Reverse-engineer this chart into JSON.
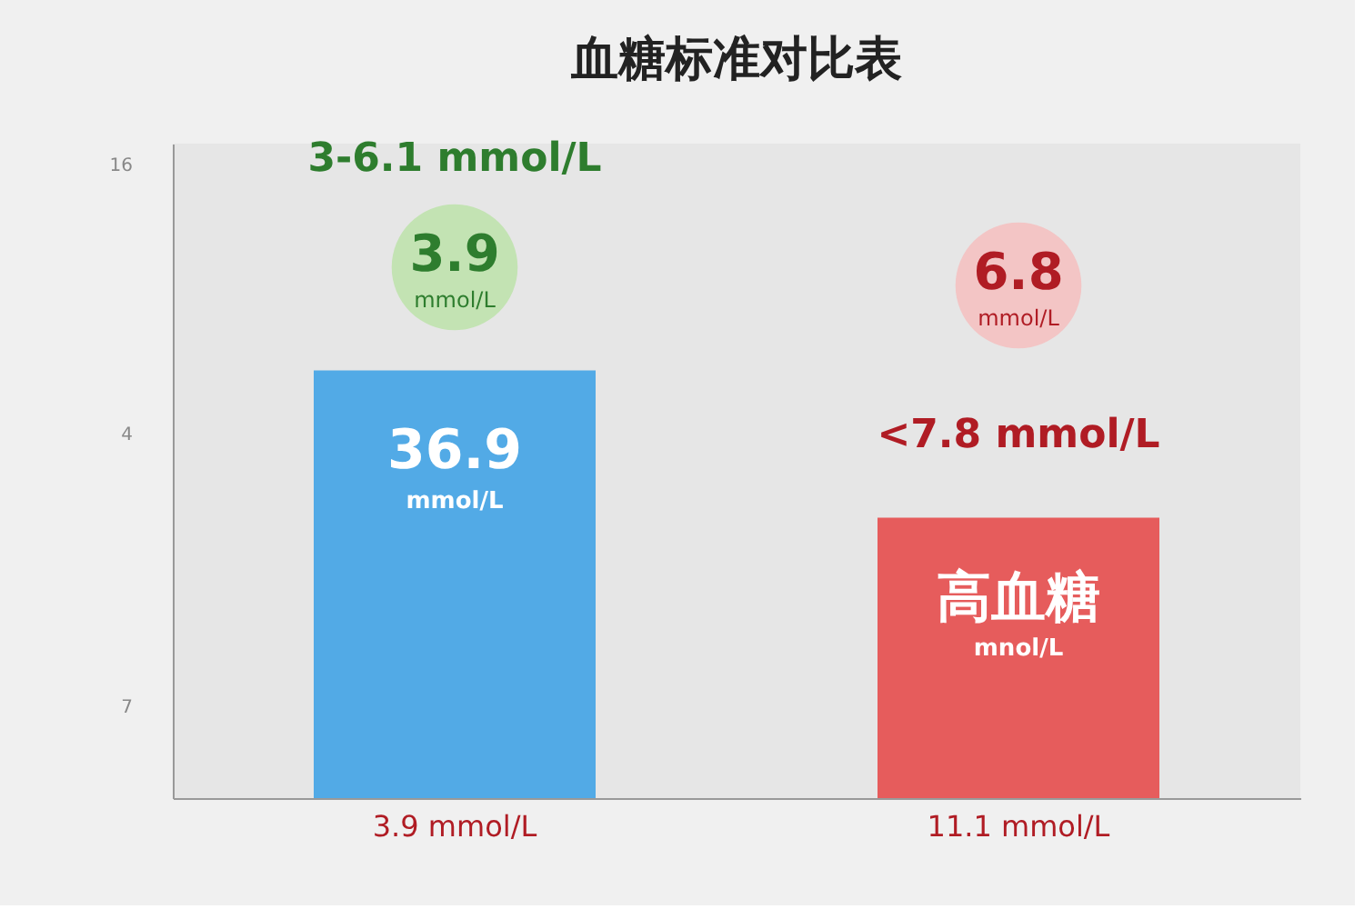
{
  "chart_data": {
    "type": "bar",
    "title": "血糖标准对比表",
    "tick_labels": "x",
    "categories": [
      "3.9 mmol/L",
      "11.1 mmol/L"
    ],
    "values": [
      36.9,
      24.2
    ],
    "colors": [
      "#52aae6",
      "#e65c5c"
    ],
    "value_labels": [
      "36.9\nmmol/L",
      "高血糖\nmnol/L"
    ],
    "annotations": [
      "3-6.1 mmol/L",
      "3.9\nmmol/L",
      "6.8\nmmol/L",
      "<7.8 mmol/L",
      "16",
      "4",
      "7"
    ]
  }
}
